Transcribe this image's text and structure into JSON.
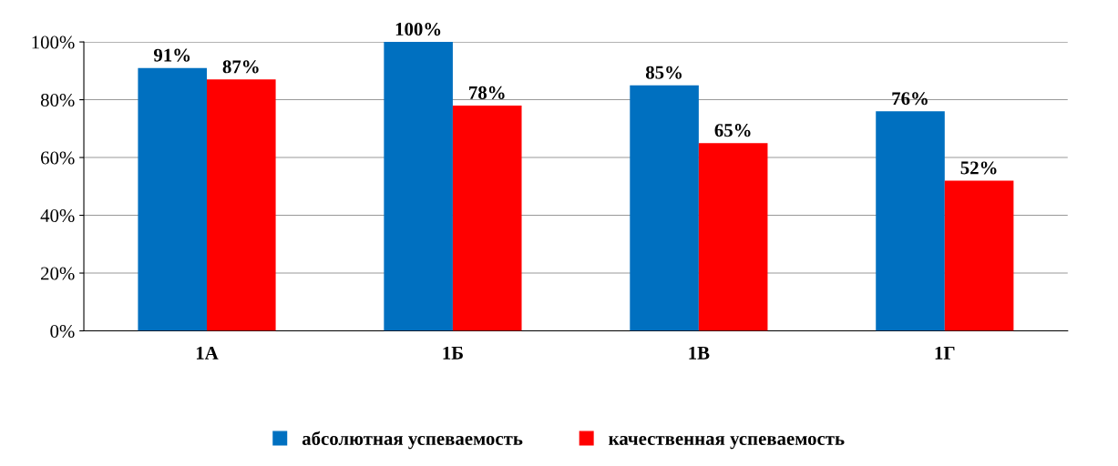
{
  "chart_data": {
    "type": "bar",
    "categories": [
      "1А",
      "1Б",
      "1В",
      "1Г"
    ],
    "series": [
      {
        "name": "абсолютная успеваемость",
        "color": "#0070c0",
        "values": [
          91,
          100,
          85,
          76
        ],
        "value_labels": [
          "91%",
          "100%",
          "85%",
          "76%"
        ]
      },
      {
        "name": "качественная успеваемость",
        "color": "#ff0000",
        "values": [
          87,
          78,
          65,
          52
        ],
        "value_labels": [
          "87%",
          "78%",
          "65%",
          "52%"
        ]
      }
    ],
    "ylim": [
      0,
      100
    ],
    "yticks": [
      {
        "value": 0,
        "label": "0%"
      },
      {
        "value": 20,
        "label": "20%"
      },
      {
        "value": 40,
        "label": "40%"
      },
      {
        "value": 60,
        "label": "60%"
      },
      {
        "value": 80,
        "label": "80%"
      },
      {
        "value": 100,
        "label": "100%"
      }
    ],
    "grid": "y",
    "legend": "bottom"
  }
}
